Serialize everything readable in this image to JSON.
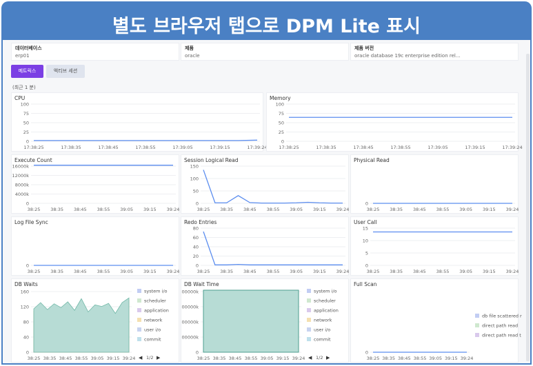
{
  "banner": {
    "title": "별도 브라우저 탭으로 DPM Lite 표시"
  },
  "info": [
    {
      "label": "데이터베이스",
      "value": "erp01"
    },
    {
      "label": "제품",
      "value": "oracle"
    },
    {
      "label": "제품 버전",
      "value": "oracle database 19c enterprise edition rel..."
    }
  ],
  "tabs": {
    "metrics": "메트릭스",
    "session": "액티브 세션"
  },
  "recent_label": "(최근 1 분)",
  "colors": {
    "line": "#5b8def",
    "accent": "#7b3fe4",
    "banner": "#4a80c4",
    "area_db_waits": "#b7dcd5",
    "area_db_wait_time": "#b7dcd5"
  },
  "legend_icons": "legend-nav",
  "chart_data": [
    {
      "id": "cpu",
      "type": "line",
      "title": "CPU",
      "yticks": [
        "100",
        "75",
        "50",
        "25",
        "0"
      ],
      "ylim": [
        0,
        100
      ],
      "xticks": [
        "17:38:25",
        "17:38:35",
        "17:38:45",
        "17:38:55",
        "17:39:05",
        "17:39:15",
        "17:39:24"
      ],
      "series": [
        {
          "values": [
            2,
            2,
            2,
            2,
            2,
            2,
            2,
            2,
            2,
            2,
            2,
            2,
            3
          ]
        }
      ]
    },
    {
      "id": "memory",
      "type": "line",
      "title": "Memory",
      "yticks": [
        "100",
        "75",
        "50",
        "25",
        "0"
      ],
      "ylim": [
        0,
        100
      ],
      "xticks": [
        "17:38:25",
        "17:38:35",
        "17:38:45",
        "17:38:55",
        "17:39:05",
        "17:39:15",
        "17:39:24"
      ],
      "series": [
        {
          "values": [
            62,
            62,
            62,
            62,
            62,
            62,
            62,
            62,
            62,
            62,
            62,
            62,
            62
          ]
        }
      ]
    },
    {
      "id": "execute",
      "type": "line",
      "title": "Execute Count",
      "yticks": [
        "16000k",
        "12000k",
        "8000k",
        "4000k",
        "0"
      ],
      "ylim": [
        0,
        16000
      ],
      "xticks": [
        "38:25",
        "38:35",
        "38:45",
        "38:55",
        "39:05",
        "39:15",
        "39:24"
      ],
      "series": [
        {
          "values": [
            15800,
            15800,
            15800,
            15800,
            15800,
            15800,
            15800,
            15800,
            15800,
            15800,
            15800,
            15800,
            15800
          ]
        }
      ]
    },
    {
      "id": "session_logical_read",
      "type": "line",
      "title": "Session Logical Read",
      "yticks": [
        "150",
        "100",
        "50",
        "0"
      ],
      "ylim": [
        0,
        150
      ],
      "xticks": [
        "38:25",
        "38:35",
        "38:45",
        "38:55",
        "39:05",
        "39:15",
        "39:24"
      ],
      "series": [
        {
          "values": [
            130,
            2,
            2,
            30,
            3,
            1,
            1,
            1,
            2,
            4,
            2,
            1,
            1
          ]
        }
      ]
    },
    {
      "id": "physical_read",
      "type": "line",
      "title": "Physical Read",
      "yticks": [
        "0"
      ],
      "ylim": [
        0,
        100
      ],
      "xticks": [
        "38:25",
        "38:35",
        "38:45",
        "38:55",
        "39:05",
        "39:15",
        "39:24"
      ],
      "series": [
        {
          "values": [
            0,
            0,
            0,
            0,
            0,
            0,
            0,
            0,
            0,
            0,
            0,
            0,
            0
          ]
        }
      ]
    },
    {
      "id": "log_file_sync",
      "type": "line",
      "title": "Log File Sync",
      "yticks": [
        "0"
      ],
      "ylim": [
        0,
        100
      ],
      "xticks": [
        "38:25",
        "38:35",
        "38:45",
        "38:55",
        "39:05",
        "39:15",
        "39:24"
      ],
      "series": [
        {
          "values": [
            0,
            0,
            0,
            0,
            0,
            0,
            0,
            0,
            0,
            0,
            0,
            0,
            0
          ]
        }
      ]
    },
    {
      "id": "redo_entries",
      "type": "line",
      "title": "Redo Entries",
      "yticks": [
        "80",
        "60",
        "40",
        "20",
        "0"
      ],
      "ylim": [
        0,
        80
      ],
      "xticks": [
        "38:25",
        "38:35",
        "38:45",
        "38:55",
        "39:05",
        "39:15",
        "39:24"
      ],
      "series": [
        {
          "values": [
            70,
            1,
            1,
            2,
            1,
            1,
            1,
            1,
            1,
            1,
            1,
            1,
            1
          ]
        }
      ]
    },
    {
      "id": "user_call",
      "type": "line",
      "title": "User Call",
      "yticks": [
        "15",
        "10",
        "5",
        "0"
      ],
      "ylim": [
        0,
        15
      ],
      "xticks": [
        "38:25",
        "38:35",
        "38:45",
        "38:55",
        "39:05",
        "39:15",
        "39:24"
      ],
      "series": [
        {
          "values": [
            13,
            13,
            13,
            13,
            13,
            13,
            13,
            13,
            13,
            13,
            13,
            13,
            13
          ]
        }
      ]
    },
    {
      "id": "db_waits",
      "type": "area",
      "title": "DB Waits",
      "yticks": [
        "160",
        "120",
        "80",
        "40",
        "0"
      ],
      "ylim": [
        0,
        160
      ],
      "xticks": [
        "38:25",
        "38:35",
        "38:45",
        "38:55",
        "39:05",
        "39:15",
        "39:24"
      ],
      "legend": [
        "system i/o",
        "scheduler",
        "application",
        "network",
        "user i/o",
        "commit"
      ],
      "legend_colors": [
        "#c2cdf3",
        "#cfe8cf",
        "#d9c9ec",
        "#f4e0b0",
        "#c8d3f0",
        "#bfe0ec"
      ],
      "page": "1/2",
      "series": [
        {
          "values": [
            112,
            128,
            110,
            125,
            115,
            130,
            108,
            138,
            104,
            122,
            118,
            126,
            100,
            128,
            140
          ]
        }
      ]
    },
    {
      "id": "db_wait_time",
      "type": "area",
      "title": "DB Wait Time",
      "yticks": [
        "00000k",
        "00000k",
        "00000k",
        "00000k",
        "0"
      ],
      "ylim": [
        0,
        100
      ],
      "xticks": [
        "38:25",
        "38:35",
        "38:45",
        "38:55",
        "39:05",
        "39:15",
        "39:24"
      ],
      "legend": [
        "system i/o",
        "scheduler",
        "application",
        "network",
        "user i/o",
        "commit"
      ],
      "legend_colors": [
        "#c2cdf3",
        "#cfe8cf",
        "#d9c9ec",
        "#f4e0b0",
        "#c8d3f0",
        "#bfe0ec"
      ],
      "page": "1/2",
      "series": [
        {
          "values": [
            100,
            100,
            100,
            100,
            100,
            100,
            100,
            100,
            100,
            100,
            100,
            100,
            100
          ]
        }
      ]
    },
    {
      "id": "full_scan",
      "type": "line",
      "title": "Full Scan",
      "yticks": [
        "0"
      ],
      "ylim": [
        0,
        100
      ],
      "xticks": [
        "38:25",
        "38:35",
        "38:45",
        "38:55",
        "39:05",
        "39:15",
        "39:24"
      ],
      "legend": [
        "db file scattered r",
        "direct path read",
        "direct path read t"
      ],
      "legend_colors": [
        "#c2cdf3",
        "#cfe8cf",
        "#d9c9ec"
      ],
      "series": [
        {
          "values": [
            0,
            0,
            0,
            0,
            0,
            0,
            0,
            0,
            0,
            0,
            0,
            0,
            0
          ]
        }
      ]
    }
  ]
}
